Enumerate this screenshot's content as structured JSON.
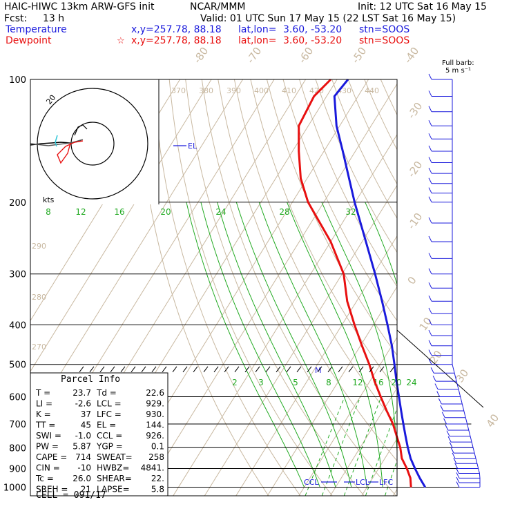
{
  "header": {
    "model": "HAIC-HIWC 13km ARW-GFS init",
    "org": "NCAR/MMM",
    "init": "Init: 12 UTC Sat 16 May 15",
    "fcst_label": "Fcst:",
    "fcst_hours": "13 h",
    "valid": "Valid: 01 UTC Sun 17 May 15 (22 LST Sat 16 May 15)",
    "temp_label": "Temperature",
    "temp_xy": "x,y=257.78, 88.18",
    "temp_latlon_label": "lat,lon=",
    "temp_latlon": "3.60, -53.20",
    "temp_stn": "stn=SOOS",
    "dew_label": "Dewpoint",
    "dew_xy": "x,y=257.78, 88.18",
    "dew_latlon_label": "lat,lon=",
    "dew_latlon": "3.60, -53.20",
    "dew_stn": "stn=SOOS",
    "star": "☆",
    "barb_title_1": "Full barb:",
    "barb_title_2": "5 m s⁻¹"
  },
  "colors": {
    "temperature": "#1a1adc",
    "dewpoint": "#e81010",
    "isotherm": "#c8b8a0",
    "mixing_ratio": "#22aa22",
    "barbs": "#1a1adc",
    "parcel": "#000000"
  },
  "chart_data": {
    "type": "line",
    "diagram": "skew-T log-P",
    "pressure_levels": [
      100,
      200,
      300,
      400,
      500,
      600,
      700,
      800,
      900,
      1000
    ],
    "isotherm_labels": [
      -80,
      -70,
      -60,
      -50,
      -40,
      -30,
      -20,
      -10,
      0,
      10,
      20,
      30,
      40
    ],
    "theta_labels": [
      370,
      380,
      390,
      400,
      410,
      420,
      430,
      440
    ],
    "theta_side_labels": [
      290,
      280,
      270
    ],
    "mixing_ratio_labels_upper": [
      8,
      12,
      16,
      20,
      24,
      28,
      32
    ],
    "mixing_ratio_labels_lower": [
      2,
      3,
      5,
      8,
      12,
      16,
      20,
      24
    ],
    "series": [
      {
        "name": "Temperature",
        "color": "#1a1adc",
        "points": [
          [
            1000,
            28.5
          ],
          [
            950,
            25.0
          ],
          [
            900,
            21.6
          ],
          [
            850,
            18.2
          ],
          [
            800,
            15.2
          ],
          [
            750,
            12.2
          ],
          [
            700,
            9.1
          ],
          [
            650,
            5.8
          ],
          [
            600,
            2.3
          ],
          [
            550,
            -1.5
          ],
          [
            500,
            -5.5
          ],
          [
            450,
            -10.0
          ],
          [
            400,
            -15.5
          ],
          [
            350,
            -21.9
          ],
          [
            300,
            -29.5
          ],
          [
            250,
            -38.8
          ],
          [
            200,
            -50.2
          ],
          [
            170,
            -58.0
          ],
          [
            150,
            -64.0
          ],
          [
            130,
            -71.0
          ],
          [
            110,
            -77.5
          ],
          [
            100,
            -76.5
          ]
        ]
      },
      {
        "name": "Dewpoint",
        "color": "#e81010",
        "points": [
          [
            1000,
            24.0
          ],
          [
            950,
            22.0
          ],
          [
            900,
            19.0
          ],
          [
            850,
            15.4
          ],
          [
            800,
            12.8
          ],
          [
            750,
            9.4
          ],
          [
            700,
            5.8
          ],
          [
            650,
            1.2
          ],
          [
            600,
            -3.5
          ],
          [
            550,
            -8.5
          ],
          [
            500,
            -13.5
          ],
          [
            450,
            -19.5
          ],
          [
            400,
            -26.0
          ],
          [
            350,
            -33.0
          ],
          [
            300,
            -39.5
          ],
          [
            250,
            -50.0
          ],
          [
            200,
            -65.0
          ],
          [
            175,
            -72.0
          ],
          [
            150,
            -78.0
          ],
          [
            130,
            -83.0
          ],
          [
            110,
            -84.0
          ],
          [
            100,
            -82.0
          ]
        ]
      }
    ],
    "level_markers": {
      "el": "EL",
      "ccl": "CCL",
      "lcl": "LCL",
      "lfc": "LFC",
      "m": "M"
    },
    "hodograph": {
      "rings": [
        10,
        20
      ],
      "unit": "kts",
      "ring_label": "20"
    },
    "wind_barbs": {
      "levels_hpa": [
        100,
        110,
        120,
        130,
        140,
        150,
        160,
        170,
        180,
        190,
        200,
        225,
        250,
        275,
        300,
        325,
        350,
        375,
        400,
        425,
        450,
        475,
        500,
        525,
        550,
        575,
        600,
        625,
        650,
        675,
        700,
        725,
        750,
        775,
        800,
        825,
        850,
        875,
        900,
        925,
        950,
        975,
        1000
      ]
    }
  },
  "parcel_info": {
    "title": "Parcel Info",
    "rows": [
      {
        "k1": "T =",
        "v1": "23.7",
        "k2": "Td =",
        "v2": "22.6"
      },
      {
        "k1": "LI =",
        "v1": "-2.6",
        "k2": "LCL =",
        "v2": "929."
      },
      {
        "k1": "K =",
        "v1": "37",
        "k2": "LFC =",
        "v2": "930."
      },
      {
        "k1": "TT =",
        "v1": "45",
        "k2": "EL =",
        "v2": "144."
      },
      {
        "k1": "SWI =",
        "v1": "-1.0",
        "k2": "CCL =",
        "v2": "926."
      },
      {
        "k1": "PW =",
        "v1": "5.87",
        "k2": "YGP =",
        "v2": "0.1"
      },
      {
        "k1": "CAPE =",
        "v1": "714",
        "k2": "SWEAT=",
        "v2": "258"
      },
      {
        "k1": "CIN =",
        "v1": "-10",
        "k2": "HWBZ=",
        "v2": "4841."
      },
      {
        "k1": "Tc =",
        "v1": "26.0",
        "k2": "SHEAR=",
        "v2": "22."
      },
      {
        "k1": "SREH =",
        "v1": "21",
        "k2": "LAPSE=",
        "v2": "5.8"
      }
    ],
    "cell": "CELL = 091/17"
  }
}
